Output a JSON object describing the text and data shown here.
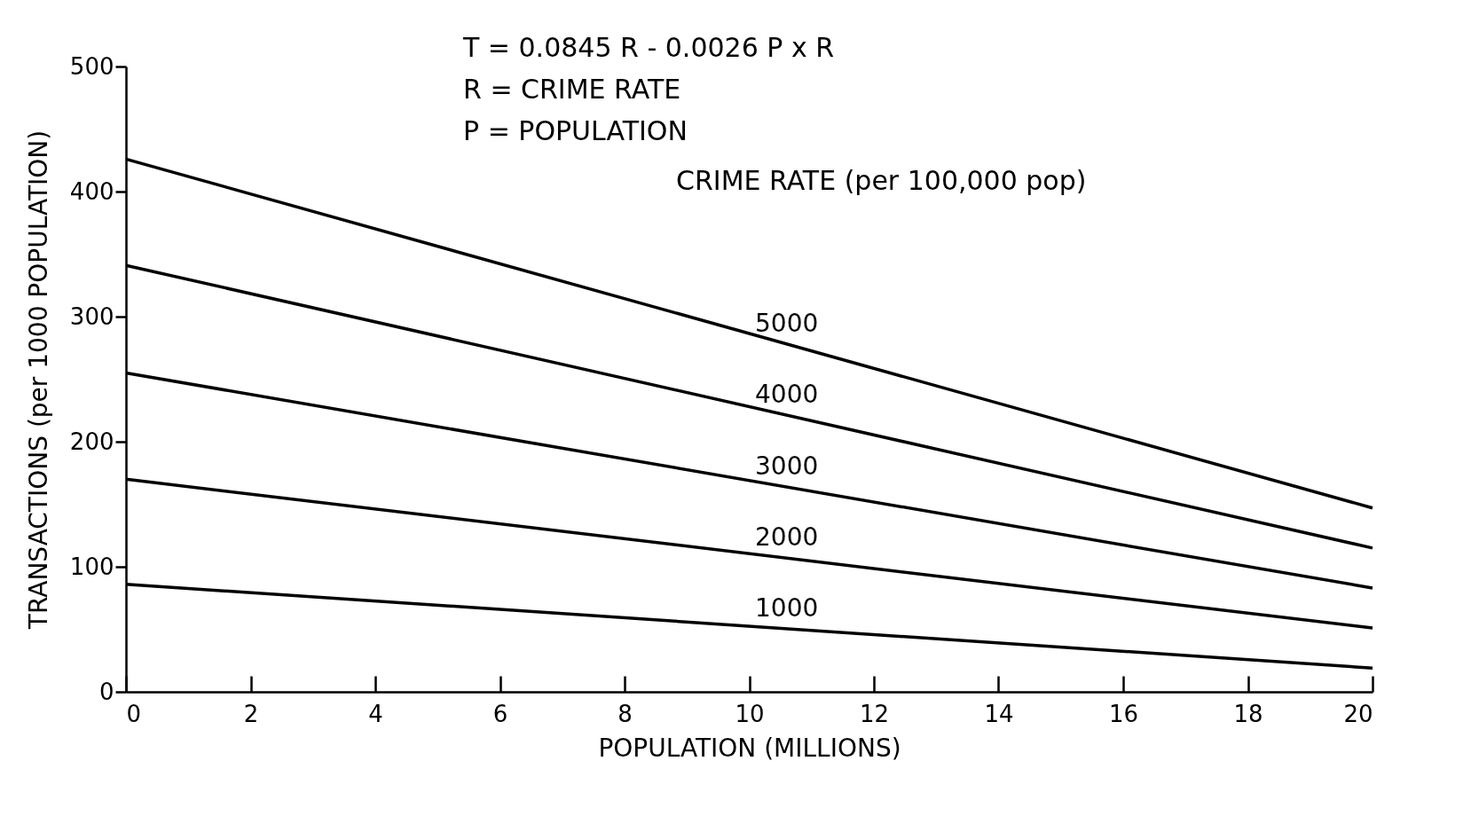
{
  "chart_data": {
    "type": "line",
    "xlabel": "POPULATION (MILLIONS)",
    "ylabel": "TRANSACTIONS (per 1000 POPULATION)",
    "legend_title": "CRIME RATE (per 100,000 pop)",
    "annotations": [
      "T  =  0.0845 R - 0.0026 P x R",
      "R  =  CRIME RATE",
      "P  =  POPULATION"
    ],
    "x": [
      0,
      20
    ],
    "series": [
      {
        "name": "5000",
        "color": "#000000",
        "values": [
          426,
          147
        ]
      },
      {
        "name": "4000",
        "color": "#000000",
        "values": [
          341,
          115
        ]
      },
      {
        "name": "3000",
        "color": "#000000",
        "values": [
          255,
          83
        ]
      },
      {
        "name": "2000",
        "color": "#000000",
        "values": [
          170,
          51
        ]
      },
      {
        "name": "1000",
        "color": "#000000",
        "values": [
          86,
          19
        ]
      }
    ],
    "xlim": [
      0,
      20
    ],
    "xticks": [
      0,
      2,
      4,
      6,
      8,
      10,
      12,
      14,
      16,
      18,
      20
    ],
    "ylim": [
      0,
      500
    ],
    "yticks": [
      0,
      100,
      200,
      300,
      400,
      500
    ],
    "grid": false,
    "legend": false,
    "marker": "none",
    "line_style": "solid"
  }
}
